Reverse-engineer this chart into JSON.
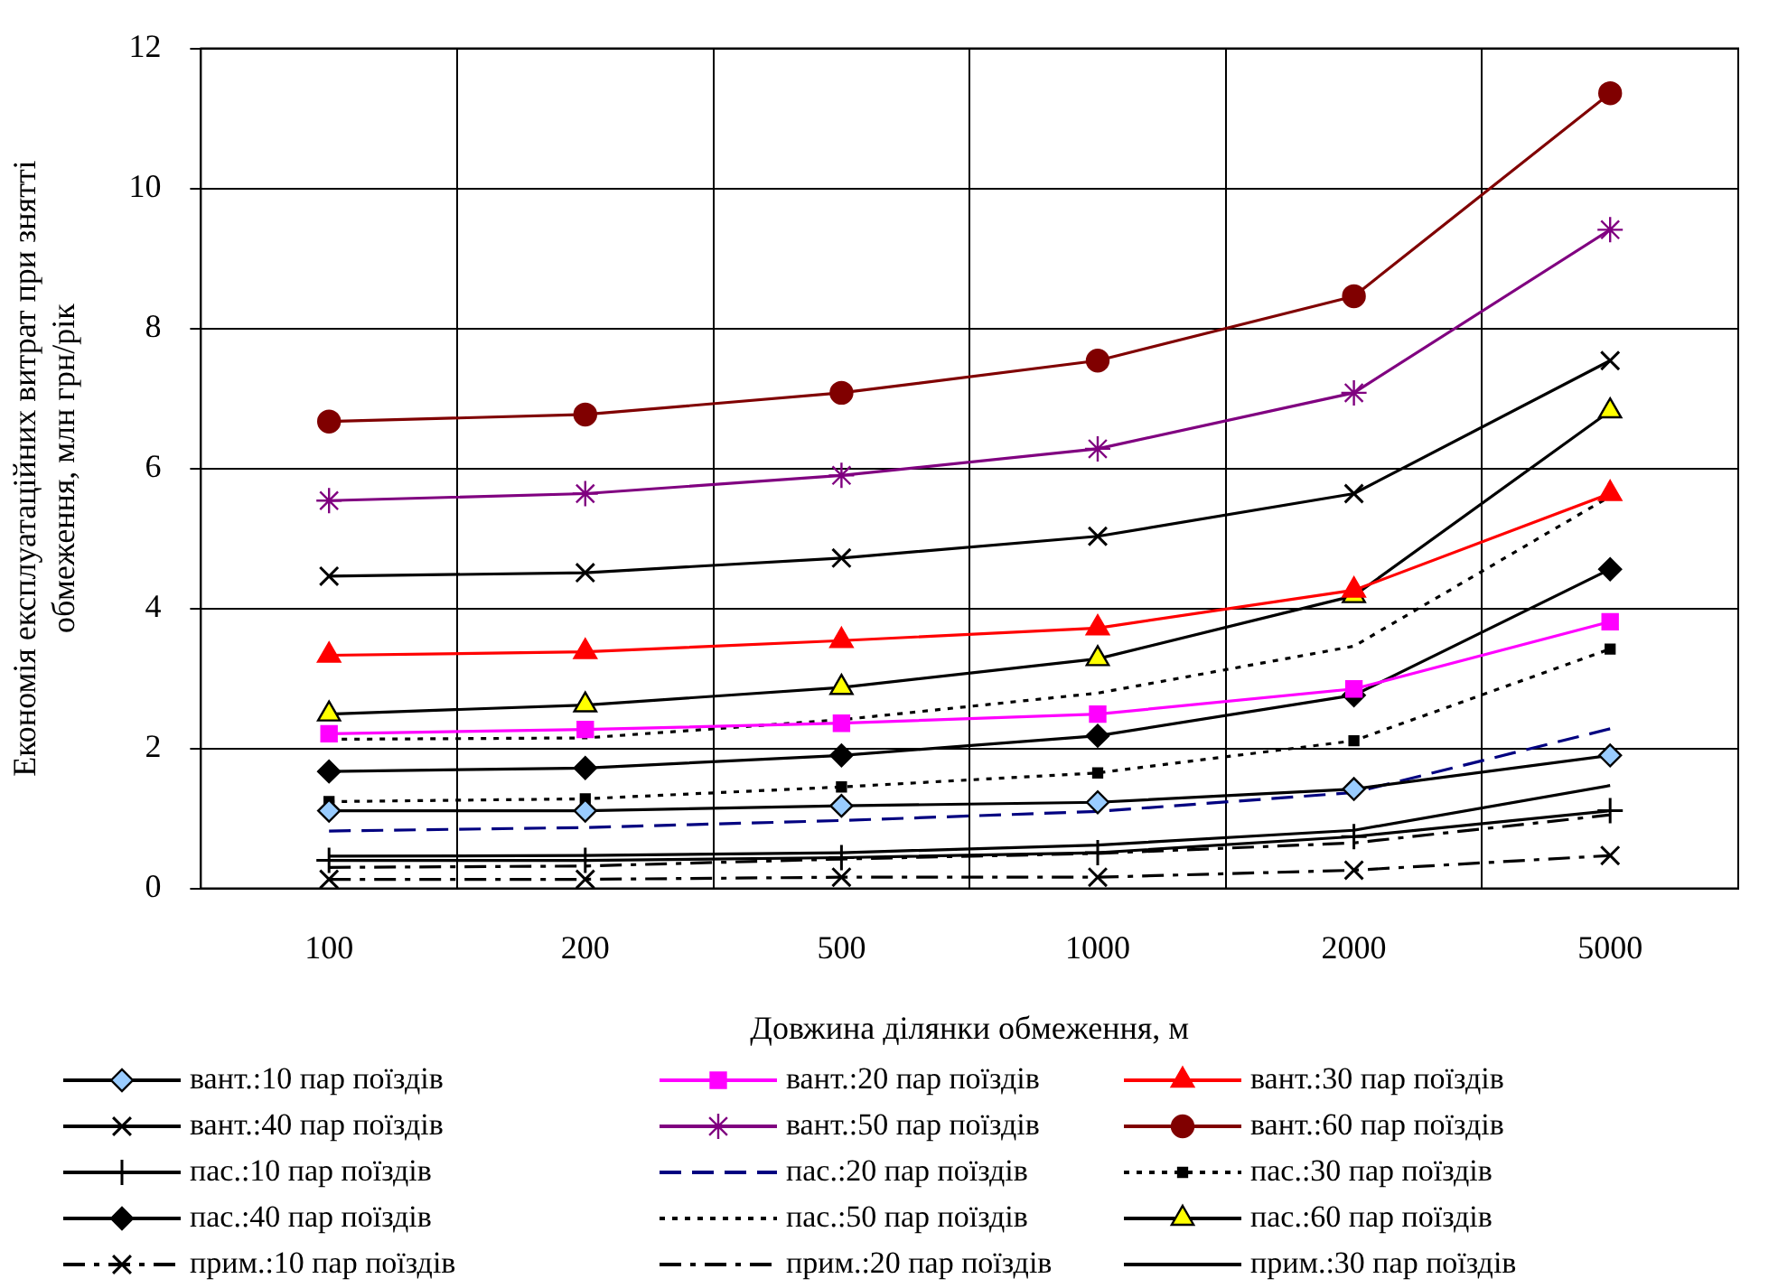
{
  "chart_data": {
    "type": "line",
    "xlabel": "Довжина ділянки обмеження, м",
    "ylabel": "Економія експлуатаційних витрат при знятті\nобмеження, млн грн/рік",
    "categories": [
      "100",
      "200",
      "500",
      "1000",
      "2000",
      "5000"
    ],
    "ylim": [
      0,
      12
    ],
    "yticks": [
      0,
      2,
      4,
      6,
      8,
      10,
      12
    ],
    "grid": true,
    "legend": "bottom",
    "series": [
      {
        "name": "вант.:10 пар поїздів",
        "color": "#000000",
        "colors": [
          "#99ccff",
          "#99ccff",
          "#99ccff",
          "#99ccff",
          "#99ccff",
          "#99ccff"
        ],
        "marker": "diamond",
        "line_style": "solid",
        "values": [
          1.11,
          1.11,
          1.18,
          1.23,
          1.42,
          1.9
        ]
      },
      {
        "name": "вант.:20 пар поїздів",
        "color": "#ff00ff",
        "marker": "square",
        "line_style": "solid",
        "values": [
          2.21,
          2.27,
          2.36,
          2.49,
          2.85,
          3.81
        ]
      },
      {
        "name": "вант.:30 пар поїздів",
        "color": "#ff0000",
        "marker": "triangle",
        "line_style": "solid",
        "values": [
          3.33,
          3.38,
          3.54,
          3.72,
          4.26,
          5.64
        ]
      },
      {
        "name": "вант.:40 пар поїздів",
        "color": "#000000",
        "marker": "x",
        "line_style": "solid",
        "values": [
          4.46,
          4.51,
          4.72,
          5.03,
          5.64,
          7.54
        ]
      },
      {
        "name": "вант.:50 пар поїздів",
        "color": "#800080",
        "marker": "cross",
        "line_style": "solid",
        "values": [
          5.54,
          5.64,
          5.9,
          6.28,
          7.08,
          9.41
        ]
      },
      {
        "name": "вант.:60 пар поїздів",
        "color": "#800000",
        "marker": "circle",
        "line_style": "solid",
        "values": [
          6.67,
          6.77,
          7.08,
          7.54,
          8.46,
          11.36
        ]
      },
      {
        "name": "пас.:10 пар поїздів",
        "color": "#000000",
        "marker": "plus",
        "line_style": "solid",
        "values": [
          0.4,
          0.4,
          0.44,
          0.51,
          0.74,
          1.11
        ]
      },
      {
        "name": "пас.:20 пар поїздів",
        "color": "#000080",
        "marker": "none",
        "line_style": "dashed",
        "values": [
          0.82,
          0.87,
          0.97,
          1.1,
          1.37,
          2.28
        ]
      },
      {
        "name": "пас.:30 пар поїздів",
        "color": "#000000",
        "marker": "square",
        "line_style": "dotted",
        "values": [
          1.24,
          1.28,
          1.45,
          1.65,
          2.11,
          3.42
        ]
      },
      {
        "name": "пас.:40 пар поїздів",
        "color": "#000000",
        "marker": "diamond",
        "line_style": "solid",
        "values": [
          1.67,
          1.72,
          1.9,
          2.18,
          2.76,
          4.56
        ]
      },
      {
        "name": "пас.:50 пар поїздів",
        "color": "#000000",
        "marker": "none",
        "line_style": "dotted",
        "values": [
          2.13,
          2.15,
          2.41,
          2.79,
          3.46,
          5.6
        ]
      },
      {
        "name": "пас.:60 пар поїздів",
        "color": "#000000",
        "colors": [
          "#ffff00",
          "#ffff00",
          "#ffff00",
          "#ffff00",
          "#ffff00",
          "#ffff00"
        ],
        "marker": "triangle",
        "line_style": "solid",
        "values": [
          2.49,
          2.62,
          2.87,
          3.28,
          4.18,
          6.82
        ]
      },
      {
        "name": "прим.:10 пар поїздів",
        "color": "#000000",
        "marker": "x",
        "line_style": "dashdot",
        "values": [
          0.13,
          0.13,
          0.16,
          0.16,
          0.26,
          0.47
        ]
      },
      {
        "name": "прим.:20 пар поїздів",
        "color": "#000000",
        "marker": "none",
        "line_style": "dashdot",
        "values": [
          0.3,
          0.32,
          0.42,
          0.5,
          0.65,
          1.05
        ]
      },
      {
        "name": "прим.:30 пар поїздів",
        "color": "#000000",
        "marker": "none",
        "line_style": "solid",
        "values": [
          0.46,
          0.47,
          0.51,
          0.62,
          0.83,
          1.47
        ]
      }
    ]
  }
}
